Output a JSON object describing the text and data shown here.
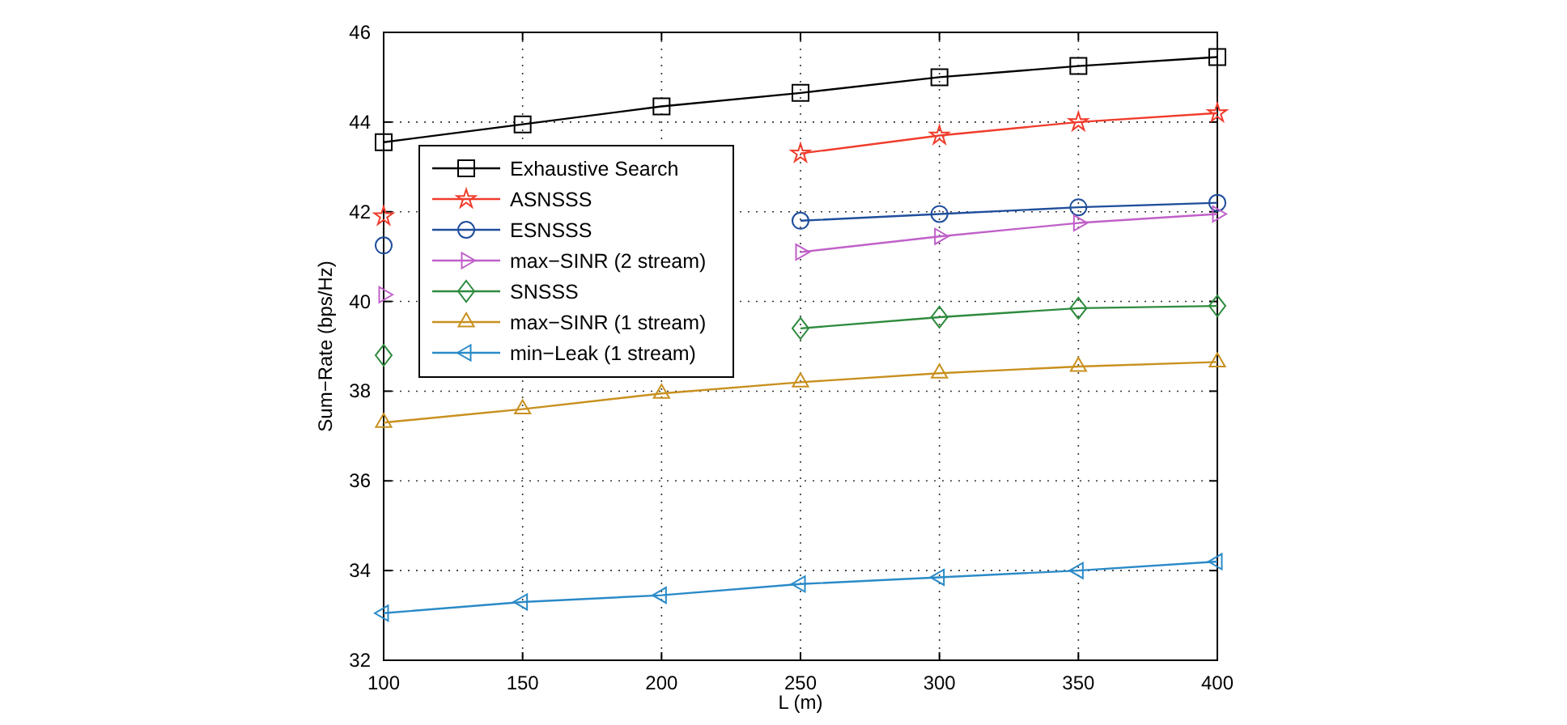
{
  "chart_data": {
    "type": "line",
    "xlabel": "L (m)",
    "ylabel": "Sum−Rate (bps/Hz)",
    "x": [
      100,
      150,
      200,
      250,
      300,
      350,
      400
    ],
    "xlim": [
      100,
      400
    ],
    "xticks": [
      100,
      150,
      200,
      250,
      300,
      350,
      400
    ],
    "ylim": [
      32,
      46
    ],
    "yticks": [
      32,
      34,
      36,
      38,
      40,
      42,
      44,
      46
    ],
    "grid": true,
    "legend": "top left",
    "line_style": "solid",
    "series": [
      {
        "name": "Exhaustive Search",
        "color": "#000000",
        "marker": "square",
        "values": [
          43.55,
          43.95,
          44.35,
          44.65,
          45.0,
          45.25,
          45.45
        ]
      },
      {
        "name": "ASNSSS",
        "color": "#f03c2c",
        "marker": "star",
        "values": [
          41.9,
          null,
          null,
          43.3,
          43.7,
          44.0,
          44.2
        ]
      },
      {
        "name": "ESNSSS",
        "color": "#1f4e9c",
        "marker": "circle",
        "values": [
          41.25,
          null,
          null,
          41.8,
          41.95,
          42.1,
          42.2
        ]
      },
      {
        "name": "max−SINR (2 stream)",
        "color": "#c060c8",
        "marker": "triangle-right",
        "values": [
          40.15,
          null,
          null,
          41.1,
          41.45,
          41.75,
          41.95
        ]
      },
      {
        "name": "SNSSS",
        "color": "#2e8b3e",
        "marker": "diamond",
        "values": [
          38.8,
          null,
          null,
          39.4,
          39.65,
          39.85,
          39.9
        ]
      },
      {
        "name": "max−SINR (1 stream)",
        "color": "#c8901e",
        "marker": "triangle",
        "values": [
          37.3,
          37.6,
          37.95,
          38.2,
          38.4,
          38.55,
          38.65
        ]
      },
      {
        "name": "min−Leak (1 stream)",
        "color": "#2a8ac8",
        "marker": "triangle-left",
        "values": [
          33.05,
          33.3,
          33.45,
          33.7,
          33.85,
          34.0,
          34.2
        ]
      }
    ]
  }
}
